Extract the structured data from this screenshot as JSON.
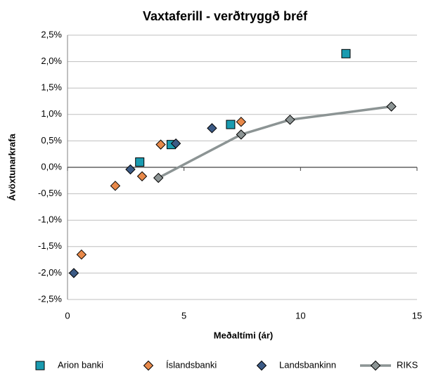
{
  "chart_data": {
    "type": "scatter",
    "title": "Vaxtaferill - verðtryggð bréf",
    "x_label": "Meðaltími (ár)",
    "y_label": "Ávöxtunarkrafa",
    "xlim": [
      0,
      15
    ],
    "xticks": [
      0,
      5,
      10,
      15
    ],
    "ylim": [
      -2.5,
      2.5
    ],
    "yticks": [
      {
        "value": -2.5,
        "label": "-2,5%"
      },
      {
        "value": -2.0,
        "label": "-2,0%"
      },
      {
        "value": -1.5,
        "label": "-1,5%"
      },
      {
        "value": -1.0,
        "label": "-1,0%"
      },
      {
        "value": -0.5,
        "label": "-0,5%"
      },
      {
        "value": 0,
        "label": "0,0%"
      },
      {
        "value": 0.5,
        "label": "0,5%"
      },
      {
        "value": 1.0,
        "label": "1,0%"
      },
      {
        "value": 1.5,
        "label": "1,5%"
      },
      {
        "value": 2.0,
        "label": "2,0%"
      },
      {
        "value": 2.5,
        "label": "2,5%"
      }
    ],
    "grid": true,
    "legend": "bottom",
    "series": [
      {
        "name": "Arion banki",
        "color": "#1a9bb0",
        "marker": "square",
        "line": false,
        "x": [
          3.1,
          4.45,
          7.0,
          11.95
        ],
        "values": [
          0.1,
          0.43,
          0.81,
          2.15
        ]
      },
      {
        "name": "Íslandsbanki",
        "color": "#e8894a",
        "marker": "diamond",
        "line": false,
        "x": [
          0.6,
          2.05,
          3.2,
          4.0,
          7.45
        ],
        "values": [
          -1.65,
          -0.35,
          -0.17,
          0.43,
          0.86
        ]
      },
      {
        "name": "Landsbankinn",
        "color": "#3b5a85",
        "marker": "diamond",
        "line": false,
        "x": [
          0.27,
          2.7,
          4.65,
          6.2
        ],
        "values": [
          -2.0,
          -0.04,
          0.45,
          0.74
        ]
      },
      {
        "name": "RIKS",
        "color": "#8c9494",
        "marker": "diamond",
        "line": true,
        "x": [
          3.9,
          7.45,
          9.55,
          13.9
        ],
        "values": [
          -0.2,
          0.62,
          0.9,
          1.15
        ]
      }
    ]
  }
}
